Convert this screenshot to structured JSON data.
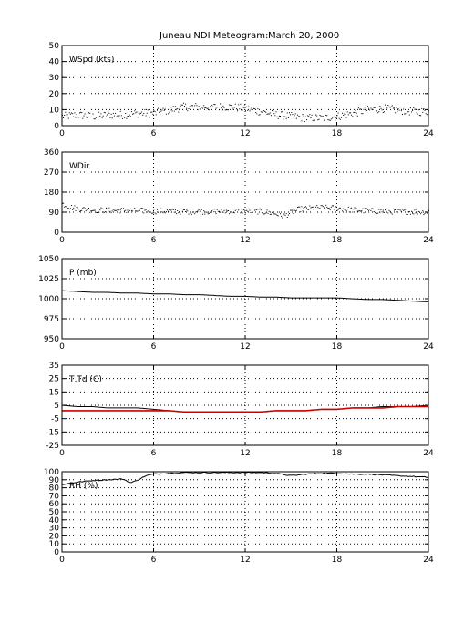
{
  "figure": {
    "title": "Juneau NDI Meteogram:",
    "date": "March 20, 2000"
  },
  "chart_data": [
    {
      "id": "wspd",
      "type": "scatter",
      "label": "WSpd (kts)",
      "xlim": [
        0,
        24
      ],
      "ylim": [
        0,
        50
      ],
      "xticks": [
        0,
        6,
        12,
        18,
        24
      ],
      "yticks": [
        0,
        10,
        20,
        30,
        40,
        50
      ],
      "grid": true,
      "series": [
        {
          "color": "#000000",
          "x": [
            0,
            1,
            2,
            3,
            4,
            5,
            6,
            7,
            8,
            9,
            10,
            11,
            12,
            13,
            14,
            15,
            16,
            17,
            18,
            19,
            20,
            21,
            22,
            23,
            24
          ],
          "values": [
            6,
            7,
            6,
            7,
            7,
            8,
            8,
            10,
            12,
            12,
            12,
            12,
            11,
            9,
            7,
            6,
            5,
            5,
            6,
            8,
            10,
            11,
            10,
            9,
            9
          ]
        }
      ]
    },
    {
      "id": "wdir",
      "type": "scatter",
      "label": "WDir",
      "xlim": [
        0,
        24
      ],
      "ylim": [
        0,
        360
      ],
      "xticks": [
        0,
        6,
        12,
        18,
        24
      ],
      "yticks": [
        0,
        90,
        180,
        270,
        360
      ],
      "grid": true,
      "series": [
        {
          "color": "#000000",
          "x": [
            0,
            0.5,
            1,
            2,
            3,
            4,
            5,
            6,
            7,
            8,
            9,
            10,
            11,
            12,
            13,
            14,
            14.5,
            15,
            15.5,
            16,
            17,
            18,
            19,
            20,
            21,
            22,
            23,
            24
          ],
          "values": [
            130,
            115,
            108,
            102,
            100,
            100,
            98,
            97,
            96,
            95,
            95,
            96,
            97,
            98,
            95,
            85,
            75,
            90,
            105,
            108,
            112,
            110,
            102,
            98,
            96,
            95,
            94,
            93
          ]
        }
      ]
    },
    {
      "id": "pressure",
      "type": "line",
      "label": "P (mb)",
      "xlim": [
        0,
        24
      ],
      "ylim": [
        950,
        1050
      ],
      "xticks": [
        0,
        6,
        12,
        18,
        24
      ],
      "yticks": [
        950,
        975,
        1000,
        1025,
        1050
      ],
      "grid": true,
      "series": [
        {
          "color": "#000000",
          "x": [
            0,
            1,
            2,
            3,
            4,
            5,
            6,
            7,
            8,
            9,
            10,
            11,
            12,
            13,
            14,
            15,
            16,
            17,
            18,
            19,
            20,
            21,
            22,
            23,
            24
          ],
          "values": [
            1010,
            1009,
            1008,
            1008,
            1007,
            1007,
            1006,
            1006,
            1005,
            1005,
            1004,
            1003,
            1003,
            1002,
            1002,
            1001,
            1001,
            1001,
            1001,
            1000,
            999,
            999,
            998,
            997,
            996
          ]
        }
      ]
    },
    {
      "id": "temp-dewpoint",
      "type": "line",
      "label": "T,Td (C)",
      "xlim": [
        0,
        24
      ],
      "ylim": [
        -25,
        35
      ],
      "xticks": [
        0,
        6,
        12,
        18,
        24
      ],
      "yticks": [
        -25,
        -15,
        -5,
        5,
        15,
        25,
        35
      ],
      "grid": true,
      "series": [
        {
          "color": "#000000",
          "x": [
            0,
            1,
            2,
            3,
            4,
            5,
            6,
            7,
            8,
            9,
            10,
            11,
            12,
            13,
            14,
            15,
            16,
            17,
            18,
            19,
            20,
            21,
            22,
            23,
            24
          ],
          "values": [
            5,
            4,
            4,
            3,
            3,
            3,
            2,
            1,
            0,
            0,
            0,
            0,
            0,
            0,
            1,
            1,
            1,
            2,
            2,
            3,
            3,
            4,
            4,
            4,
            5
          ]
        },
        {
          "color": "#cc0000",
          "x": [
            0,
            1,
            2,
            3,
            4,
            5,
            6,
            7,
            8,
            9,
            10,
            11,
            12,
            13,
            14,
            15,
            16,
            17,
            18,
            19,
            20,
            21,
            22,
            23,
            24
          ],
          "values": [
            1,
            1,
            1,
            1,
            1,
            1,
            1,
            1,
            0,
            0,
            0,
            0,
            0,
            0,
            1,
            1,
            1,
            2,
            2,
            3,
            3,
            3,
            4,
            4,
            4
          ]
        }
      ]
    },
    {
      "id": "rh",
      "type": "line",
      "label": "RH (%)",
      "xlim": [
        0,
        24
      ],
      "ylim": [
        0,
        100
      ],
      "xticks": [
        0,
        6,
        12,
        18,
        24
      ],
      "yticks": [
        0,
        10,
        20,
        30,
        40,
        50,
        60,
        70,
        80,
        90,
        100
      ],
      "grid": true,
      "series": [
        {
          "color": "#000000",
          "x": [
            0,
            1,
            2,
            3,
            4,
            4.5,
            5,
            5.5,
            6,
            7,
            8,
            9,
            10,
            11,
            12,
            13,
            14,
            15,
            16,
            17,
            18,
            19,
            20,
            21,
            22,
            23,
            24
          ],
          "values": [
            84,
            87,
            89,
            90,
            91,
            86,
            90,
            95,
            97,
            98,
            99,
            99,
            99,
            99,
            99,
            99,
            98,
            95,
            97,
            98,
            98,
            97,
            97,
            96,
            95,
            94,
            93
          ]
        }
      ]
    }
  ]
}
